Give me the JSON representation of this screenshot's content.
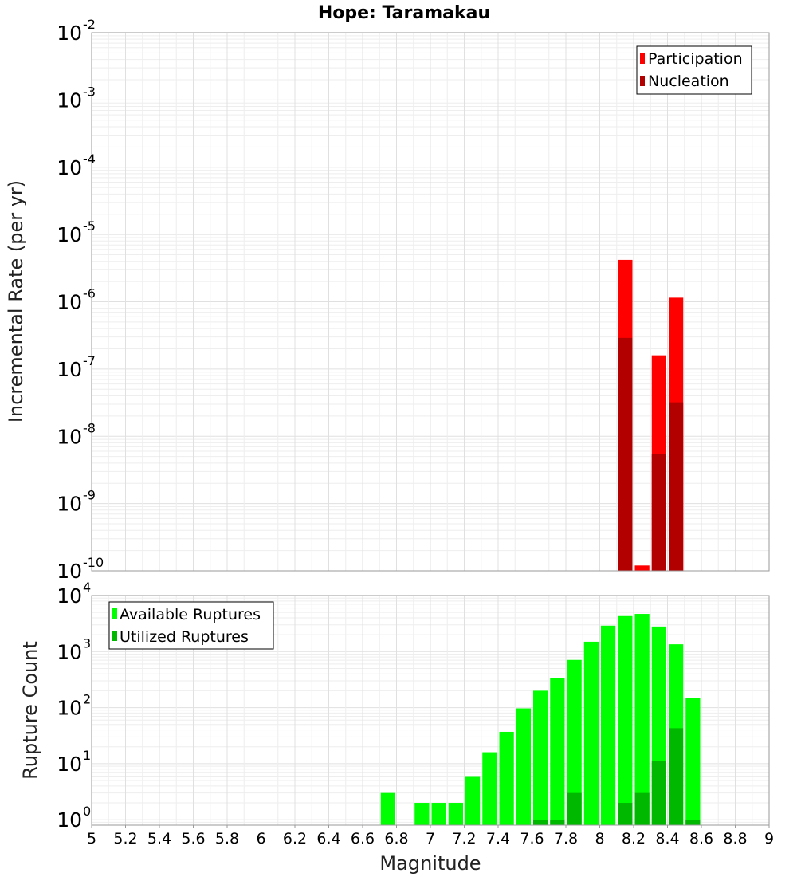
{
  "chart_data": {
    "title": "Hope: Taramakau",
    "xlabel": "Magnitude",
    "x_ticks": [
      "5",
      "5.2",
      "5.4",
      "5.6",
      "5.8",
      "6",
      "6.2",
      "6.4",
      "6.6",
      "6.8",
      "7",
      "7.2",
      "7.4",
      "7.6",
      "7.8",
      "8",
      "8.2",
      "8.4",
      "8.6",
      "8.8",
      "9"
    ],
    "xlim": [
      5,
      9
    ],
    "bin_width": 0.1,
    "panels": [
      {
        "type": "bar",
        "ylabel": "Incremental Rate (per yr)",
        "yscale": "log",
        "ylim": [
          1e-10,
          0.01
        ],
        "y_ticks": [
          {
            "base": "10",
            "exp": "-10"
          },
          {
            "base": "10",
            "exp": "-9"
          },
          {
            "base": "10",
            "exp": "-8"
          },
          {
            "base": "10",
            "exp": "-7"
          },
          {
            "base": "10",
            "exp": "-6"
          },
          {
            "base": "10",
            "exp": "-5"
          },
          {
            "base": "10",
            "exp": "-4"
          },
          {
            "base": "10",
            "exp": "-3"
          },
          {
            "base": "10",
            "exp": "-2"
          }
        ],
        "legend": {
          "position": "top-right",
          "items": [
            "Participation",
            "Nucleation"
          ]
        },
        "series": [
          {
            "name": "Participation",
            "color": "#ff0000",
            "points": [
              {
                "x": 8.15,
                "y": 4.2e-06
              },
              {
                "x": 8.25,
                "y": 1.2e-10
              },
              {
                "x": 8.35,
                "y": 1.6e-07
              },
              {
                "x": 8.45,
                "y": 1.15e-06
              }
            ]
          },
          {
            "name": "Nucleation",
            "color": "#b20000",
            "points": [
              {
                "x": 8.15,
                "y": 2.9e-07
              },
              {
                "x": 8.35,
                "y": 5.5e-09
              },
              {
                "x": 8.45,
                "y": 3.2e-08
              }
            ]
          }
        ]
      },
      {
        "type": "bar",
        "ylabel": "Rupture Count",
        "yscale": "log",
        "ylim": [
          0.8,
          10000
        ],
        "y_ticks": [
          {
            "base": "10",
            "exp": "0"
          },
          {
            "base": "10",
            "exp": "1"
          },
          {
            "base": "10",
            "exp": "2"
          },
          {
            "base": "10",
            "exp": "3"
          },
          {
            "base": "10",
            "exp": "4"
          }
        ],
        "legend": {
          "position": "top-left",
          "items": [
            "Available Ruptures",
            "Utilized Ruptures"
          ]
        },
        "series": [
          {
            "name": "Available Ruptures",
            "color": "#00ff00",
            "points": [
              {
                "x": 6.75,
                "y": 3
              },
              {
                "x": 6.95,
                "y": 2
              },
              {
                "x": 7.05,
                "y": 2
              },
              {
                "x": 7.15,
                "y": 2
              },
              {
                "x": 7.25,
                "y": 6
              },
              {
                "x": 7.35,
                "y": 16
              },
              {
                "x": 7.45,
                "y": 37
              },
              {
                "x": 7.55,
                "y": 97
              },
              {
                "x": 7.65,
                "y": 200
              },
              {
                "x": 7.75,
                "y": 340
              },
              {
                "x": 7.85,
                "y": 710
              },
              {
                "x": 7.95,
                "y": 1500
              },
              {
                "x": 8.05,
                "y": 2900
              },
              {
                "x": 8.15,
                "y": 4300
              },
              {
                "x": 8.25,
                "y": 4700
              },
              {
                "x": 8.35,
                "y": 2800
              },
              {
                "x": 8.45,
                "y": 1350
              },
              {
                "x": 8.55,
                "y": 150
              }
            ]
          },
          {
            "name": "Utilized Ruptures",
            "color": "#00b800",
            "points": [
              {
                "x": 7.65,
                "y": 1
              },
              {
                "x": 7.75,
                "y": 1
              },
              {
                "x": 7.85,
                "y": 3
              },
              {
                "x": 8.15,
                "y": 2
              },
              {
                "x": 8.25,
                "y": 3
              },
              {
                "x": 8.35,
                "y": 11
              },
              {
                "x": 8.45,
                "y": 43
              },
              {
                "x": 8.55,
                "y": 1
              }
            ]
          }
        ]
      }
    ]
  }
}
